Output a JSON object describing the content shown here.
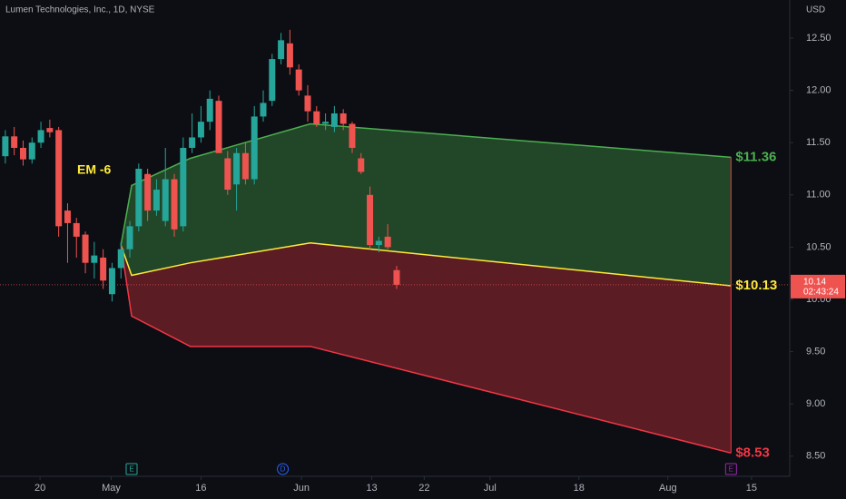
{
  "chart_data": {
    "type": "candlestick",
    "title": "Lumen Technologies, Inc., 1D, NYSE",
    "currency": "USD",
    "up_color": "#26a69a",
    "down_color": "#ef5350",
    "xlim": [
      -0.6,
      88.2
    ],
    "ylim": [
      8.307,
      12.865
    ],
    "xticks": [
      {
        "value": 3.9,
        "label": "20"
      },
      {
        "value": 11.9,
        "label": "May"
      },
      {
        "value": 22,
        "label": "16"
      },
      {
        "value": 33.3,
        "label": "Jun"
      },
      {
        "value": 41.2,
        "label": "13"
      },
      {
        "value": 47.1,
        "label": "22"
      },
      {
        "value": 54.5,
        "label": "Jul"
      },
      {
        "value": 64.5,
        "label": "18"
      },
      {
        "value": 74.5,
        "label": "Aug"
      },
      {
        "value": 83.9,
        "label": "15"
      }
    ],
    "yticks": [
      {
        "value": 8.5,
        "label": "8.50"
      },
      {
        "value": 9,
        "label": "9.00"
      },
      {
        "value": 9.5,
        "label": "9.50"
      },
      {
        "value": 10,
        "label": "10.00"
      },
      {
        "value": 10.5,
        "label": "10.50"
      },
      {
        "value": 11,
        "label": "11.00"
      },
      {
        "value": 11.5,
        "label": "11.50"
      },
      {
        "value": 12,
        "label": "12.00"
      },
      {
        "value": 12.5,
        "label": "12.50"
      }
    ],
    "open": [
      11.37,
      11.56,
      11.45,
      11.34,
      11.5,
      11.64,
      11.62,
      10.85,
      10.73,
      10.62,
      10.35,
      10.4,
      10.05,
      10.3,
      10.48,
      10.7,
      11.2,
      10.85,
      10.75,
      11.15,
      10.7,
      11.45,
      11.55,
      11.7,
      11.9,
      11.35,
      11.1,
      11.4,
      11.15,
      11.75,
      11.9,
      12.3,
      12.45,
      12.2,
      11.95,
      11.8,
      11.68,
      11.65,
      11.78,
      11.68,
      11.35,
      11.0,
      10.52,
      10.6,
      10.28
    ],
    "high": [
      11.62,
      11.65,
      11.52,
      11.55,
      11.7,
      11.72,
      11.65,
      10.92,
      10.78,
      10.65,
      10.55,
      10.48,
      10.35,
      10.55,
      10.75,
      11.3,
      11.25,
      11.15,
      11.45,
      11.2,
      11.55,
      11.78,
      11.85,
      12.0,
      11.95,
      11.42,
      11.45,
      11.5,
      11.85,
      12.0,
      12.35,
      12.55,
      12.58,
      12.25,
      12.05,
      11.85,
      11.78,
      11.85,
      11.82,
      11.7,
      11.4,
      11.08,
      10.6,
      10.72,
      10.32
    ],
    "low": [
      11.3,
      11.38,
      11.28,
      11.3,
      11.45,
      11.55,
      10.6,
      10.35,
      10.4,
      10.25,
      10.2,
      10.1,
      9.98,
      10.2,
      10.4,
      10.65,
      10.75,
      10.8,
      10.7,
      10.6,
      10.65,
      11.4,
      11.5,
      11.62,
      11.4,
      11.0,
      10.85,
      11.1,
      11.1,
      11.7,
      11.85,
      12.25,
      12.15,
      11.95,
      11.7,
      11.65,
      11.62,
      11.6,
      11.62,
      11.4,
      11.2,
      10.48,
      10.45,
      10.48,
      10.1
    ],
    "close": [
      11.56,
      11.45,
      11.34,
      11.5,
      11.62,
      11.6,
      10.7,
      10.73,
      10.6,
      10.35,
      10.42,
      10.18,
      10.3,
      10.48,
      10.7,
      11.25,
      10.85,
      11.05,
      11.15,
      10.67,
      11.45,
      11.55,
      11.7,
      11.92,
      11.4,
      11.05,
      11.4,
      11.15,
      11.75,
      11.88,
      12.3,
      12.48,
      12.22,
      12.0,
      11.8,
      11.68,
      11.7,
      11.78,
      11.68,
      11.45,
      11.22,
      10.52,
      10.56,
      10.5,
      10.14
    ],
    "expected_move": {
      "annotation": "EM -6",
      "x": [
        13,
        14.2,
        20.8,
        34.3,
        81.6
      ],
      "upper": [
        10.52,
        11.09,
        11.35,
        11.68,
        11.36
      ],
      "mid": [
        10.52,
        10.23,
        10.35,
        10.54,
        10.13
      ],
      "lower": [
        10.52,
        9.84,
        9.55,
        9.55,
        8.53
      ],
      "upper_color": "#4caf50",
      "mid_color": "#ffeb3b",
      "lower_color": "#f23645",
      "upper_label": "$11.36",
      "mid_label": "$10.13",
      "lower_label": "$8.53"
    },
    "last_price": 10.14,
    "countdown": "02:43:24",
    "events": [
      {
        "x": 14.2,
        "label": "E",
        "color": "#26a69a"
      },
      {
        "x": 31.2,
        "label": "D",
        "color": "#2962ff"
      },
      {
        "x": 81.6,
        "label": "E",
        "color": "#9c27b0"
      }
    ]
  }
}
